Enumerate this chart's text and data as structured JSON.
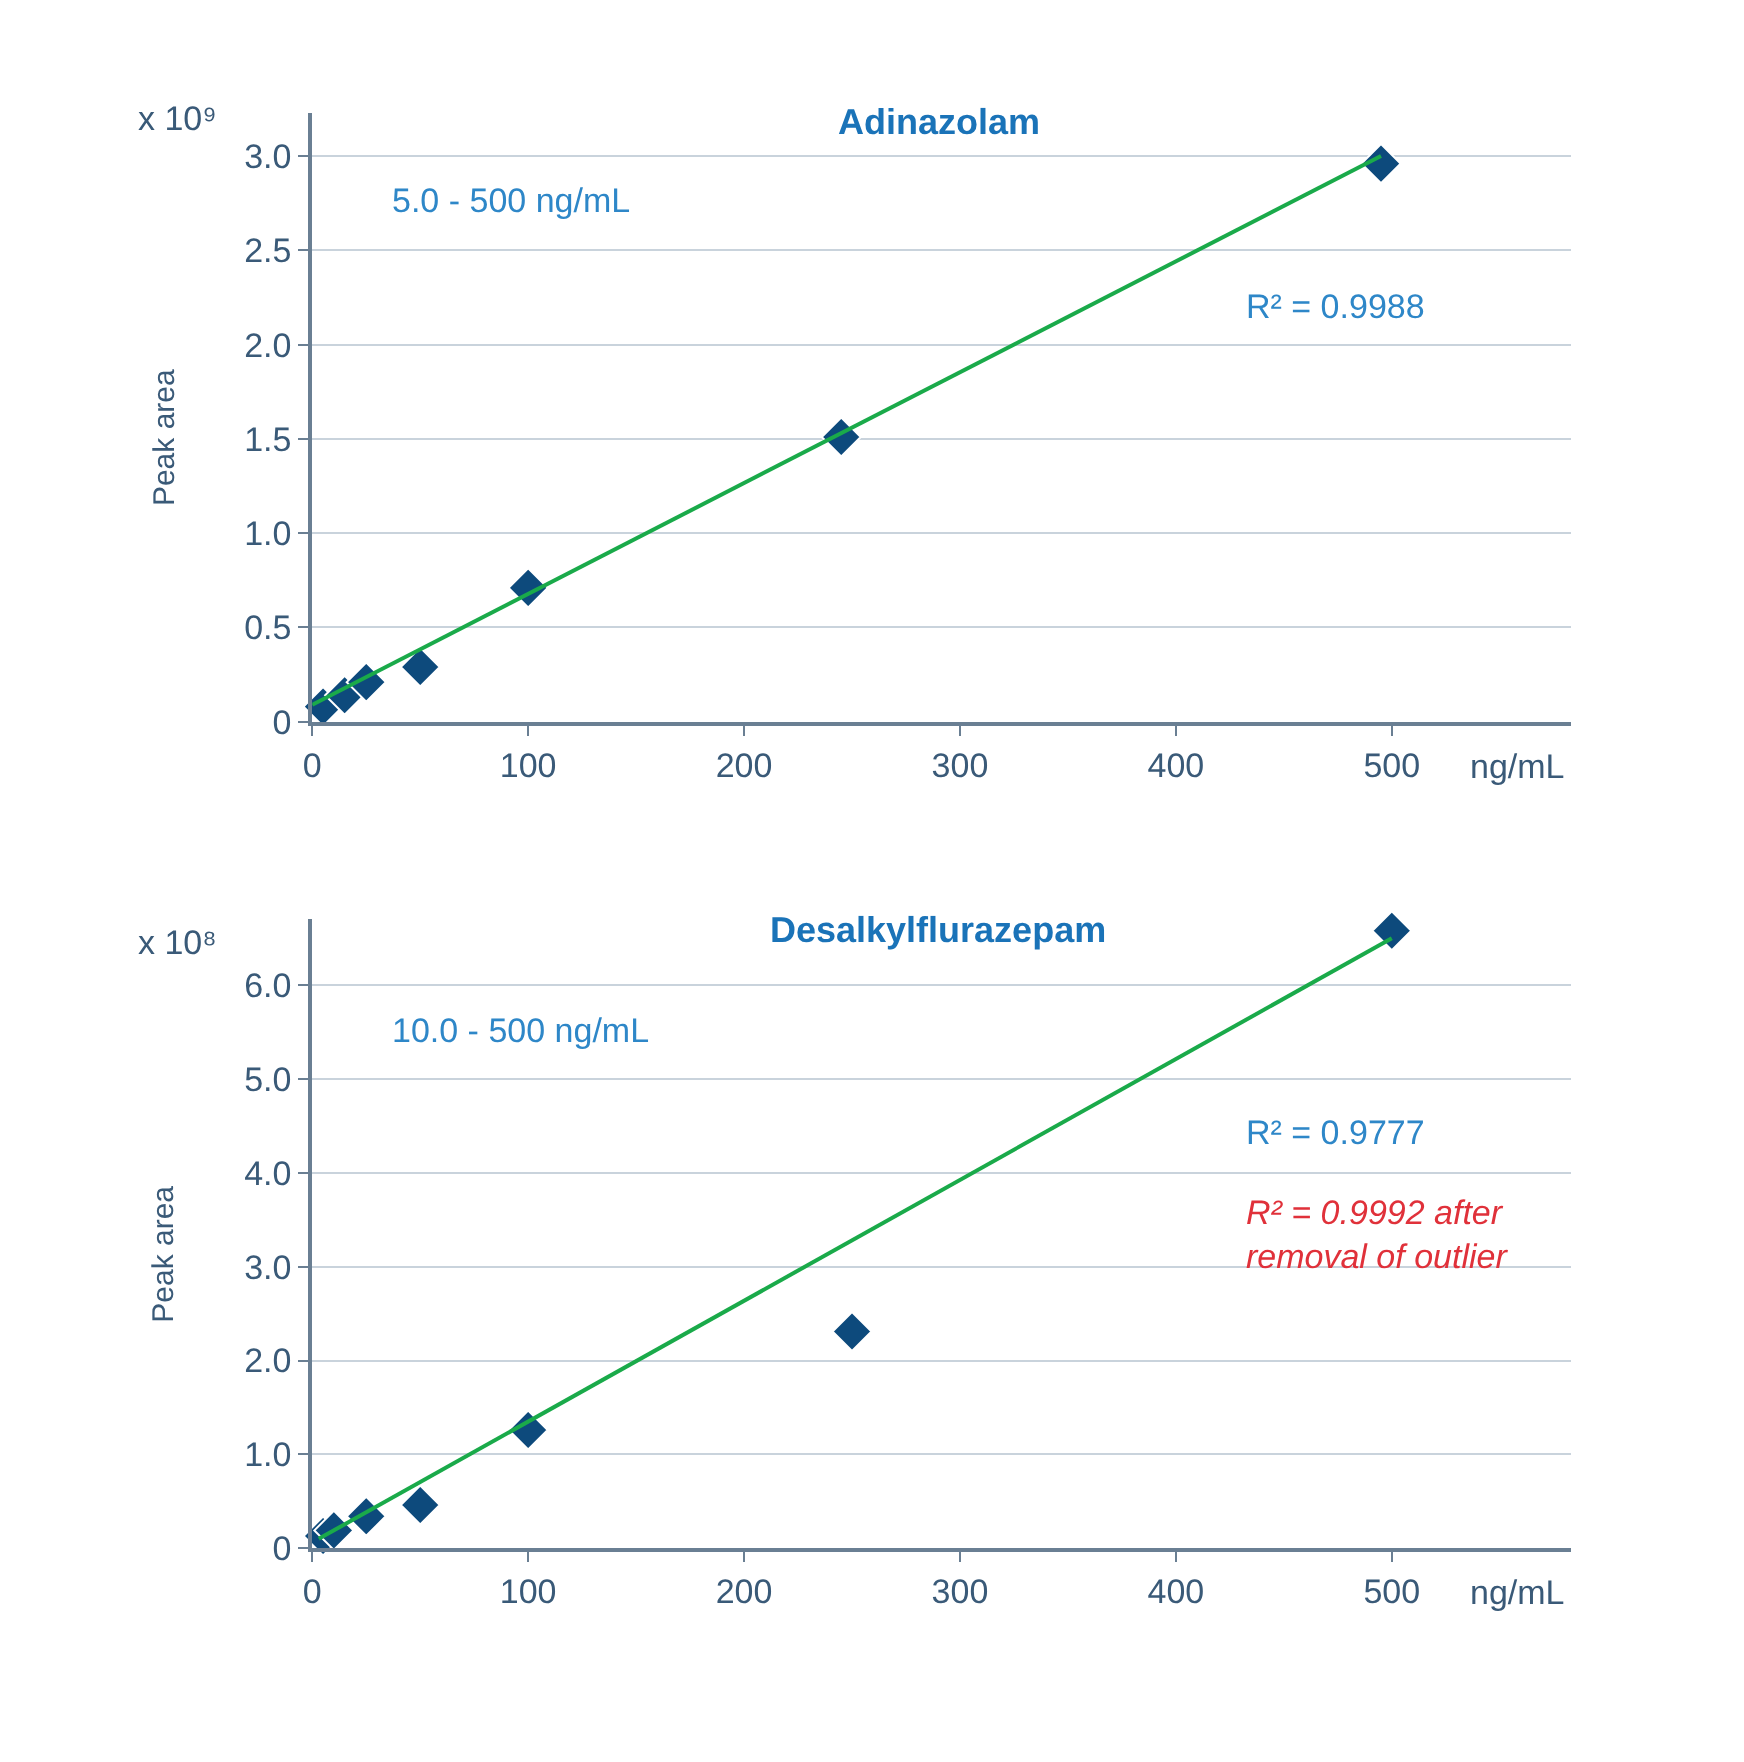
{
  "chart_data": [
    {
      "type": "scatter",
      "title": "Adinazolam",
      "xlabel": "ng/mL",
      "ylabel": "Peak area",
      "annotations": [
        "x 10⁹",
        "5.0 - 500 ng/mL",
        "R² = 0.9988"
      ],
      "series": [
        {
          "marker": "diamond",
          "color": "#0d4a7c",
          "x": [
            5,
            15,
            25,
            50,
            100,
            245,
            495
          ],
          "values": [
            0.08,
            0.14,
            0.21,
            0.29,
            0.71,
            1.51,
            2.96
          ]
        },
        {
          "type": "line",
          "color": "#1aaa4a",
          "x": [
            0,
            495
          ],
          "values": [
            0.09,
            3.0
          ]
        }
      ],
      "xlim": [
        0,
        583
      ],
      "xticks": [
        0,
        100,
        200,
        300,
        400,
        500
      ],
      "ylim": [
        0,
        3.23
      ],
      "yticks": [
        0,
        {
          "value": 0.5,
          "label": "0.5"
        },
        {
          "value": 1,
          "label": "1.0"
        },
        {
          "value": 1.5,
          "label": "1.5"
        },
        {
          "value": 2,
          "label": "2.0"
        },
        {
          "value": 2.5,
          "label": "2.5"
        },
        {
          "value": 3,
          "label": "3.0"
        }
      ],
      "grid": "y"
    },
    {
      "type": "scatter",
      "title": "Desalkylflurazepam",
      "xlabel": "ng/mL",
      "ylabel": "Peak area",
      "annotations": [
        "x 10⁸",
        "10.0 - 500 ng/mL",
        "R² = 0.9777",
        "R² = 0.9992 after removal of outlier"
      ],
      "series": [
        {
          "marker": "diamond",
          "color": "#0d4a7c",
          "x": [
            5,
            10,
            25,
            50,
            100,
            250,
            500
          ],
          "values": [
            0.13,
            0.19,
            0.34,
            0.46,
            1.26,
            2.31,
            6.58
          ]
        },
        {
          "type": "line",
          "color": "#1aaa4a",
          "x": [
            3,
            500
          ],
          "values": [
            0.1,
            6.5
          ]
        }
      ],
      "xlim": [
        0,
        583
      ],
      "xticks": [
        0,
        100,
        200,
        300,
        400,
        500
      ],
      "ylim": [
        0,
        6.7
      ],
      "yticks": [
        0,
        {
          "value": 1,
          "label": "1.0"
        },
        {
          "value": 2,
          "label": "2.0"
        },
        {
          "value": 3,
          "label": "3.0"
        },
        {
          "value": 4,
          "label": "4.0"
        },
        {
          "value": 5,
          "label": "5.0"
        },
        {
          "value": 6,
          "label": "6.0"
        }
      ],
      "grid": "y"
    }
  ]
}
